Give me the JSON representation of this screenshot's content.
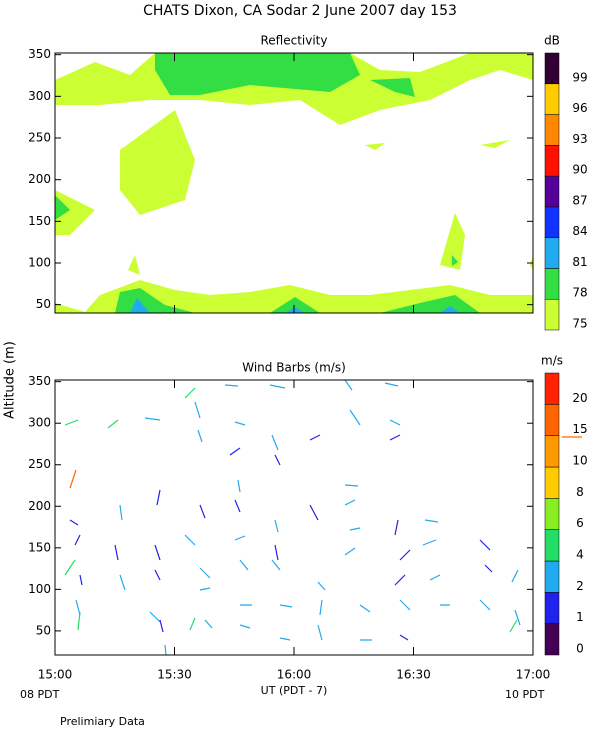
{
  "header": {
    "title": "CHATS Dixon, CA  Sodar    2 June 2007   day 153"
  },
  "chart_data": [
    {
      "type": "contour",
      "title": "Reflectivity",
      "colorbar_title": "dB",
      "xlim": [
        900,
        1020
      ],
      "xticks": [
        {
          "value": 900,
          "label": "15:00"
        },
        {
          "value": 930,
          "label": "15:30"
        },
        {
          "value": 960,
          "label": "16:00"
        },
        {
          "value": 990,
          "label": "16:30"
        },
        {
          "value": 1020,
          "label": "17:00"
        }
      ],
      "ylim": [
        40,
        352
      ],
      "yticks": [
        50,
        100,
        150,
        200,
        250,
        300,
        350
      ],
      "levels": [
        75,
        78,
        81,
        84,
        87,
        90,
        93,
        96,
        99
      ],
      "colors": [
        "#ccff33",
        "#33dd44",
        "#22aaee",
        "#1133ff",
        "#550099",
        "#ff1100",
        "#ff8800",
        "#ffcc00",
        "#330033"
      ]
    },
    {
      "type": "barbs",
      "title": "Wind Barbs (m/s)",
      "colorbar_title": "m/s",
      "y_label": "Altitude (m)",
      "x_label": "UT  (PDT - 7)",
      "x_left_note": "08 PDT",
      "x_right_note": "10 PDT",
      "xlim": [
        900,
        1020
      ],
      "xticks": [
        {
          "value": 900,
          "label": "15:00"
        },
        {
          "value": 930,
          "label": "15:30"
        },
        {
          "value": 960,
          "label": "16:00"
        },
        {
          "value": 990,
          "label": "16:30"
        },
        {
          "value": 1020,
          "label": "17:00"
        }
      ],
      "ylim": [
        21,
        352
      ],
      "yticks": [
        50,
        100,
        150,
        200,
        250,
        300,
        350
      ],
      "levels": [
        0,
        1,
        2,
        4,
        6,
        8,
        10,
        15,
        20
      ],
      "colors": [
        "#440055",
        "#2222ee",
        "#22aaee",
        "#22dd66",
        "#88ee22",
        "#ffcc00",
        "#ff9900",
        "#ff6600",
        "#ff2200"
      ]
    }
  ],
  "footer": {
    "note": "Prelimiary Data"
  }
}
